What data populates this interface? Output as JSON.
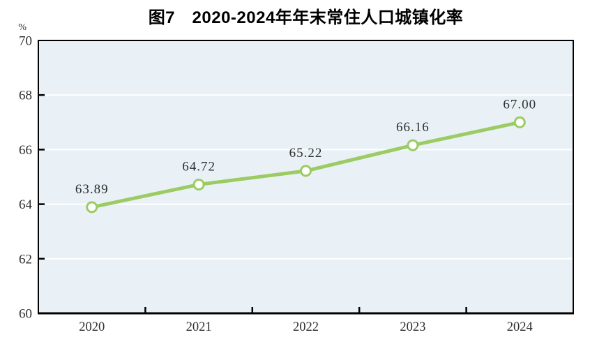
{
  "title": "图7　2020-2024年年末常住人口城镇化率",
  "chart_data": {
    "type": "line",
    "title": "图7　2020-2024年年末常住人口城镇化率",
    "categories": [
      "2020",
      "2021",
      "2022",
      "2023",
      "2024"
    ],
    "values": [
      63.89,
      64.72,
      65.22,
      66.16,
      67.0
    ],
    "data_labels": [
      "63.89",
      "64.72",
      "65.22",
      "66.16",
      "67.00"
    ],
    "xlabel": "",
    "ylabel": "%",
    "ylim": [
      60,
      70
    ],
    "yticks": [
      60,
      62,
      64,
      66,
      68,
      70
    ],
    "ytick_labels": [
      "60",
      "62",
      "64",
      "66",
      "68",
      "70"
    ],
    "grid": true,
    "legend": "none",
    "marker": "circle",
    "colors": {
      "line": "#9BCB62",
      "marker_fill": "#FFFFFF",
      "marker_stroke": "#9BCB62",
      "plot_bg": "#E9F1F6",
      "gridline": "#FFFFFF",
      "axis": "#000000",
      "text": "#2E2E2E",
      "title_text": "#000000",
      "page_bg": "#FFFFFF"
    }
  }
}
